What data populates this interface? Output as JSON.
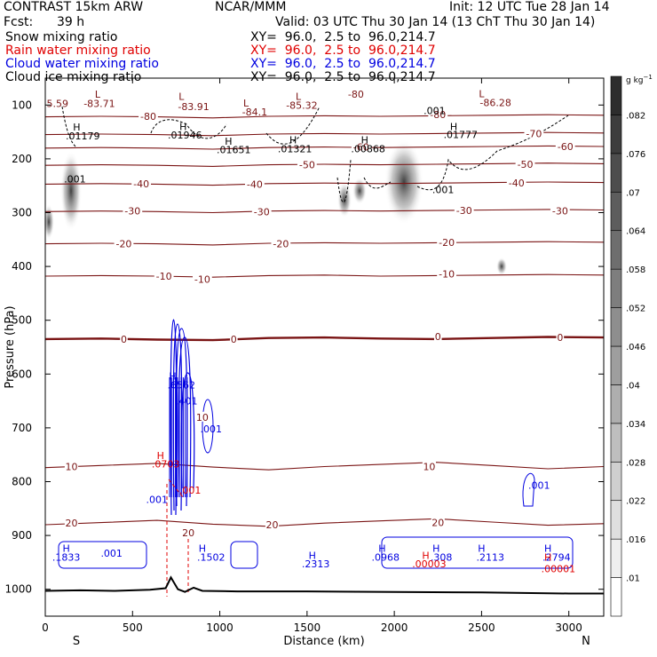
{
  "header": {
    "model": "CONTRAST 15km ARW",
    "org": "NCAR/MMM",
    "init": "Init: 12 UTC Tue 28 Jan 14",
    "fcst_label": "Fcst:",
    "fcst_value": "39 h",
    "valid": "Valid: 03 UTC Thu 30 Jan 14 (13 ChT Thu 30 Jan 14)",
    "rows": [
      {
        "name": "Snow mixing ratio",
        "xy": "XY=  96.0,  2.5 to  96.0,214.7",
        "color": "#000000"
      },
      {
        "name": "Rain water mixing ratio",
        "xy": "XY=  96.0,  2.5 to  96.0,214.7",
        "color": "#e00000"
      },
      {
        "name": "Cloud water mixing ratio",
        "xy": "XY=  96.0,  2.5 to  96.0,214.7",
        "color": "#0000e0"
      },
      {
        "name": "Cloud ice mixing ratio",
        "xy": "XY=  96.0,  2.5 to  96.0,214.7",
        "color": "#000000"
      }
    ]
  },
  "chart_data": {
    "type": "heatmap",
    "xlabel": "Distance (km)",
    "ylabel": "Pressure (hPa)",
    "xlim": [
      0,
      3200
    ],
    "ylim": [
      1050,
      50
    ],
    "xticks": [
      0,
      500,
      1000,
      1500,
      2000,
      2500,
      3000
    ],
    "yticks": [
      100,
      200,
      300,
      400,
      500,
      600,
      700,
      800,
      900,
      1000
    ],
    "end_labels": {
      "left": "S",
      "right": "N"
    },
    "colorbar": {
      "unit_text": "g kg",
      "unit_sup": "−1",
      "ticks": [
        ".01",
        ".016",
        ".022",
        ".028",
        ".034",
        ".04",
        ".046",
        ".052",
        ".058",
        ".064",
        ".07",
        ".076",
        ".082"
      ]
    },
    "temperature_contours": {
      "color": "#7a1414",
      "levels": [
        {
          "value": 20,
          "p": [
            880,
            876,
            872,
            879,
            883,
            877,
            873,
            869,
            875,
            881,
            878
          ]
        },
        {
          "value": 10,
          "p": [
            774,
            770,
            766,
            773,
            778,
            772,
            768,
            764,
            770,
            776,
            772
          ]
        },
        {
          "value": 0,
          "p": [
            535,
            534,
            536,
            537,
            533,
            532,
            534,
            535,
            533,
            531,
            532
          ]
        },
        {
          "value": -10,
          "p": [
            418,
            417,
            418,
            420,
            417,
            416,
            418,
            417,
            416,
            415,
            416
          ]
        },
        {
          "value": -20,
          "p": [
            358,
            357,
            358,
            360,
            357,
            356,
            357,
            356,
            355,
            354,
            355
          ]
        },
        {
          "value": -30,
          "p": [
            298,
            297,
            298,
            300,
            297,
            296,
            297,
            296,
            295,
            294,
            295
          ]
        },
        {
          "value": -40,
          "p": [
            247,
            246,
            247,
            249,
            246,
            245,
            246,
            245,
            244,
            243,
            244
          ]
        },
        {
          "value": -50,
          "p": [
            212,
            211,
            212,
            214,
            211,
            210,
            211,
            210,
            209,
            208,
            209
          ]
        },
        {
          "value": -60,
          "p": [
            180,
            179,
            180,
            182,
            179,
            178,
            179,
            178,
            177,
            176,
            177
          ]
        },
        {
          "value": -70,
          "p": [
            155,
            154,
            155,
            157,
            154,
            153,
            154,
            153,
            152,
            151,
            152
          ]
        },
        {
          "value": -80,
          "p": [
            122,
            121,
            122,
            124,
            121,
            120,
            121,
            120,
            119,
            118,
            119
          ]
        }
      ],
      "labels": [
        {
          "text": "20",
          "x": 150,
          "p": 877
        },
        {
          "text": "20",
          "x": 1300,
          "p": 880
        },
        {
          "text": "20",
          "x": 2250,
          "p": 876
        },
        {
          "text": "20",
          "x": 820,
          "p": 895
        },
        {
          "text": "10",
          "x": 150,
          "p": 772
        },
        {
          "text": "10",
          "x": 2200,
          "p": 772
        },
        {
          "text": "10",
          "x": 900,
          "p": 680
        },
        {
          "text": "0",
          "x": 450,
          "p": 535
        },
        {
          "text": "0",
          "x": 1080,
          "p": 535
        },
        {
          "text": "0",
          "x": 2250,
          "p": 530
        },
        {
          "text": "0",
          "x": 2950,
          "p": 532
        },
        {
          "text": "-10",
          "x": 680,
          "p": 418
        },
        {
          "text": "-10",
          "x": 900,
          "p": 424
        },
        {
          "text": "-10",
          "x": 2300,
          "p": 414
        },
        {
          "text": "-20",
          "x": 450,
          "p": 358
        },
        {
          "text": "-20",
          "x": 1350,
          "p": 358
        },
        {
          "text": "-20",
          "x": 2300,
          "p": 355
        },
        {
          "text": "-30",
          "x": 500,
          "p": 297
        },
        {
          "text": "-30",
          "x": 1240,
          "p": 298
        },
        {
          "text": "-30",
          "x": 2400,
          "p": 296
        },
        {
          "text": "-30",
          "x": 2950,
          "p": 297
        },
        {
          "text": "-40",
          "x": 550,
          "p": 246
        },
        {
          "text": "-40",
          "x": 1200,
          "p": 247
        },
        {
          "text": "-40",
          "x": 2700,
          "p": 245
        },
        {
          "text": "-50",
          "x": 1500,
          "p": 211
        },
        {
          "text": "-50",
          "x": 2750,
          "p": 210
        },
        {
          "text": "-60",
          "x": 1810,
          "p": 178
        },
        {
          "text": "-60",
          "x": 2980,
          "p": 177
        },
        {
          "text": "-70",
          "x": 2800,
          "p": 153
        },
        {
          "text": "-80",
          "x": 590,
          "p": 121
        },
        {
          "text": "-80",
          "x": 1780,
          "p": 80
        },
        {
          "text": "-80",
          "x": 2250,
          "p": 118
        }
      ]
    },
    "minmax_labels": [
      {
        "text": "L",
        "x": 300,
        "p": 80,
        "color": "#7a1414"
      },
      {
        "text": "-83.71",
        "x": 310,
        "p": 97,
        "color": "#7a1414"
      },
      {
        "text": "5.59",
        "x": 70,
        "p": 97,
        "color": "#7a1414"
      },
      {
        "text": "L",
        "x": 780,
        "p": 84,
        "color": "#7a1414"
      },
      {
        "text": "-83.91",
        "x": 850,
        "p": 103,
        "color": "#7a1414"
      },
      {
        "text": "L",
        "x": 1150,
        "p": 96,
        "color": "#7a1414"
      },
      {
        "text": "-84.1",
        "x": 1200,
        "p": 113,
        "color": "#7a1414"
      },
      {
        "text": "L",
        "x": 1450,
        "p": 84,
        "color": "#7a1414"
      },
      {
        "text": "-85.32",
        "x": 1470,
        "p": 100,
        "color": "#7a1414"
      },
      {
        "text": "L",
        "x": 2500,
        "p": 79,
        "color": "#7a1414"
      },
      {
        "text": "-86.28",
        "x": 2580,
        "p": 95,
        "color": "#7a1414"
      },
      {
        "text": "H",
        "x": 180,
        "p": 141,
        "color": "#000000"
      },
      {
        "text": ".01179",
        "x": 215,
        "p": 157,
        "color": "#000000"
      },
      {
        "text": "H",
        "x": 790,
        "p": 140,
        "color": "#000000"
      },
      {
        "text": ".01946",
        "x": 800,
        "p": 156,
        "color": "#000000"
      },
      {
        "text": "H",
        "x": 1050,
        "p": 167,
        "color": "#000000"
      },
      {
        "text": ".01651",
        "x": 1080,
        "p": 183,
        "color": "#000000"
      },
      {
        "text": "H",
        "x": 1420,
        "p": 165,
        "color": "#000000"
      },
      {
        "text": ".01321",
        "x": 1430,
        "p": 181,
        "color": "#000000"
      },
      {
        "text": "H",
        "x": 1830,
        "p": 165,
        "color": "#000000"
      },
      {
        "text": ".00868",
        "x": 1850,
        "p": 181,
        "color": "#000000"
      },
      {
        "text": "H",
        "x": 2340,
        "p": 140,
        "color": "#000000"
      },
      {
        "text": ".01777",
        "x": 2380,
        "p": 155,
        "color": "#000000"
      },
      {
        "text": ".001",
        "x": 2230,
        "p": 110,
        "color": "#000000"
      },
      {
        "text": ".001",
        "x": 170,
        "p": 237,
        "color": "#000000"
      },
      {
        "text": ".001",
        "x": 2280,
        "p": 257,
        "color": "#000000"
      },
      {
        "text": "H",
        "x": 730,
        "p": 604,
        "color": "#0000e0"
      },
      {
        "text": ".6562",
        "x": 780,
        "p": 620,
        "color": "#0000e0"
      },
      {
        "text": ".401",
        "x": 810,
        "p": 650,
        "color": "#0000e0"
      },
      {
        "text": ".001",
        "x": 950,
        "p": 702,
        "color": "#0000e0"
      },
      {
        "text": ".001",
        "x": 2830,
        "p": 807,
        "color": "#0000e0"
      },
      {
        "text": ".001",
        "x": 640,
        "p": 833,
        "color": "#0000e0"
      },
      {
        "text": "H",
        "x": 660,
        "p": 751,
        "color": "#e00000"
      },
      {
        "text": ".0703",
        "x": 690,
        "p": 767,
        "color": "#e00000"
      },
      {
        "text": ".001",
        "x": 830,
        "p": 816,
        "color": "#e00000"
      },
      {
        "text": "H",
        "x": 120,
        "p": 924,
        "color": "#0000e0"
      },
      {
        "text": ".1833",
        "x": 120,
        "p": 940,
        "color": "#0000e0"
      },
      {
        "text": ".001",
        "x": 380,
        "p": 933,
        "color": "#0000e0"
      },
      {
        "text": "H",
        "x": 900,
        "p": 924,
        "color": "#0000e0"
      },
      {
        "text": ".1502",
        "x": 950,
        "p": 940,
        "color": "#0000e0"
      },
      {
        "text": "H",
        "x": 1530,
        "p": 937,
        "color": "#0000e0"
      },
      {
        "text": ".2313",
        "x": 1550,
        "p": 953,
        "color": "#0000e0"
      },
      {
        "text": "H",
        "x": 1930,
        "p": 924,
        "color": "#0000e0"
      },
      {
        "text": ".0968",
        "x": 1950,
        "p": 940,
        "color": "#0000e0"
      },
      {
        "text": "H",
        "x": 2240,
        "p": 924,
        "color": "#0000e0"
      },
      {
        "text": ".308",
        "x": 2270,
        "p": 940,
        "color": "#0000e0"
      },
      {
        "text": "H",
        "x": 2180,
        "p": 937,
        "color": "#e00000"
      },
      {
        "text": ".00003",
        "x": 2200,
        "p": 953,
        "color": "#e00000"
      },
      {
        "text": "H",
        "x": 2500,
        "p": 924,
        "color": "#0000e0"
      },
      {
        "text": ".2113",
        "x": 2550,
        "p": 940,
        "color": "#0000e0"
      },
      {
        "text": "H",
        "x": 2880,
        "p": 924,
        "color": "#0000e0"
      },
      {
        "text": ".2794",
        "x": 2930,
        "p": 940,
        "color": "#0000e0"
      },
      {
        "text": "H",
        "x": 2880,
        "p": 940,
        "color": "#e00000"
      },
      {
        "text": ".00001",
        "x": 2940,
        "p": 962,
        "color": "#e00000"
      }
    ],
    "terrain_pressure": {
      "x": [
        0,
        200,
        400,
        600,
        690,
        720,
        760,
        800,
        850,
        900,
        1100,
        1500,
        2000,
        2500,
        3000,
        3200
      ],
      "p": [
        1003,
        1002,
        1003,
        1001,
        998,
        978,
        1000,
        1005,
        997,
        1003,
        1004,
        1004,
        1005,
        1006,
        1008,
        1008
      ]
    }
  }
}
